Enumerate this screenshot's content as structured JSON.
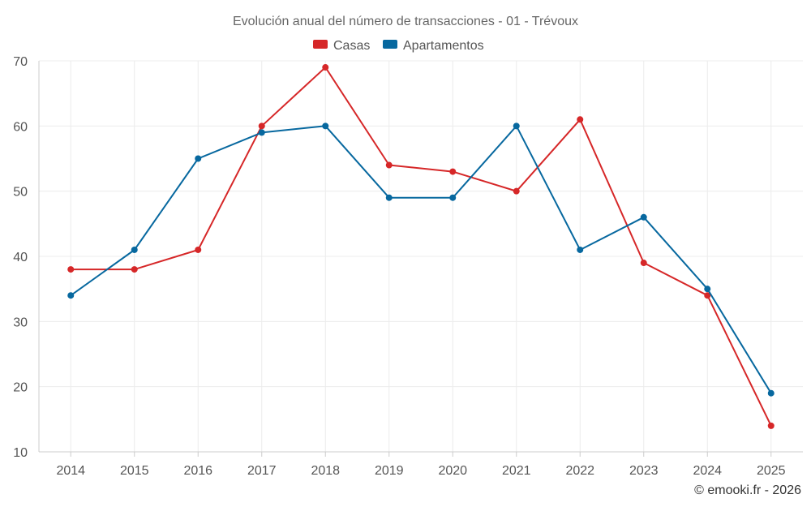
{
  "chart_data": {
    "type": "line",
    "title": "Evolución anual del número de transacciones - 01 - Trévoux",
    "categories": [
      "2014",
      "2015",
      "2016",
      "2017",
      "2018",
      "2019",
      "2020",
      "2021",
      "2022",
      "2023",
      "2024",
      "2025"
    ],
    "series": [
      {
        "name": "Casas",
        "color": "#d62728",
        "values": [
          38,
          38,
          41,
          60,
          69,
          54,
          53,
          50,
          61,
          39,
          34,
          14
        ]
      },
      {
        "name": "Apartamentos",
        "color": "#07689f",
        "values": [
          34,
          41,
          55,
          59,
          60,
          49,
          49,
          60,
          41,
          46,
          35,
          19
        ]
      }
    ],
    "yticks": [
      10,
      20,
      30,
      40,
      50,
      60,
      70
    ],
    "ylim": [
      10,
      70
    ],
    "grid": true,
    "legend": "top-center",
    "xlabel": "",
    "ylabel": ""
  },
  "credit": "© emooki.fr - 2026"
}
